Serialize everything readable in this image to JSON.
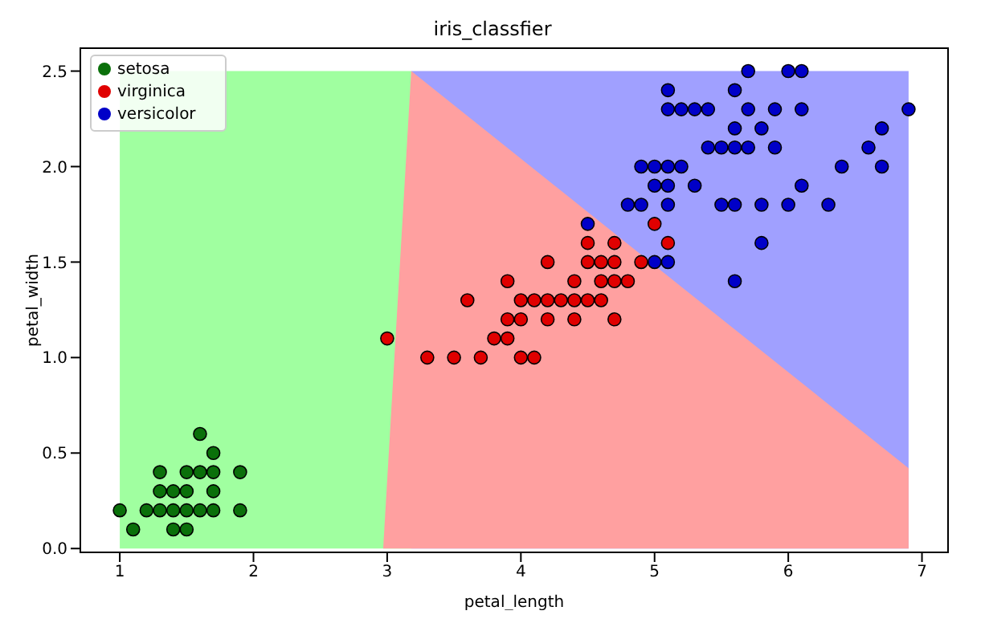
{
  "chart_data": {
    "type": "scatter",
    "title": "iris_classfier",
    "xlabel": "petal_length",
    "ylabel": "petal_width",
    "xlim": [
      0.705,
      7.195
    ],
    "xticks": [
      1,
      2,
      3,
      4,
      5,
      6,
      7
    ],
    "ylim": [
      -0.02,
      2.62
    ],
    "yticks": [
      {
        "value": 0,
        "label": "0.0"
      },
      {
        "value": 0.5,
        "label": "0.5"
      },
      {
        "value": 1,
        "label": "1.0"
      },
      {
        "value": 1.5,
        "label": "1.5"
      },
      {
        "value": 2,
        "label": "2.0"
      },
      {
        "value": 2.5,
        "label": "2.5"
      }
    ],
    "grid": false,
    "legend": "top left",
    "series": [
      {
        "type": "area",
        "color": "#a0a0ff",
        "x": [
          3.18,
          6.9
        ],
        "values": [
          2.5,
          2.5
        ]
      },
      {
        "type": "area",
        "color": "#a0ffa0",
        "x": [
          1,
          3.18
        ],
        "values": [
          2.5,
          2.5
        ]
      },
      {
        "type": "area",
        "color": "#ffa0a0",
        "x": [
          2.97,
          3.18,
          6.9
        ],
        "values": [
          0,
          2.5,
          0.42
        ]
      },
      {
        "name": "setosa",
        "color": "#0a700a",
        "x": [
          1.0,
          1.2,
          1.3,
          1.4,
          1.5,
          1.6,
          1.7,
          1.9,
          1.1,
          1.4,
          1.5,
          1.3,
          1.4,
          1.5,
          1.7,
          1.3,
          1.5,
          1.6,
          1.7,
          1.9,
          1.7,
          1.6
        ],
        "values": [
          0.2,
          0.2,
          0.2,
          0.2,
          0.2,
          0.2,
          0.2,
          0.2,
          0.1,
          0.1,
          0.1,
          0.3,
          0.3,
          0.3,
          0.3,
          0.4,
          0.4,
          0.4,
          0.4,
          0.4,
          0.5,
          0.6
        ]
      },
      {
        "name": "virginica",
        "color": "#e00000",
        "x": [
          3.3,
          3.5,
          3.7,
          4.0,
          4.1,
          3.0,
          3.8,
          3.9,
          3.9,
          4.0,
          4.2,
          4.4,
          4.7,
          3.6,
          4.0,
          4.1,
          4.2,
          4.3,
          4.4,
          4.5,
          4.6,
          3.9,
          4.4,
          4.6,
          4.7,
          4.8,
          4.2,
          4.5,
          4.6,
          4.7,
          4.9,
          4.5,
          4.7,
          5.1,
          5.0
        ],
        "values": [
          1.0,
          1.0,
          1.0,
          1.0,
          1.0,
          1.1,
          1.1,
          1.1,
          1.2,
          1.2,
          1.2,
          1.2,
          1.2,
          1.3,
          1.3,
          1.3,
          1.3,
          1.3,
          1.3,
          1.3,
          1.3,
          1.4,
          1.4,
          1.4,
          1.4,
          1.4,
          1.5,
          1.5,
          1.5,
          1.5,
          1.5,
          1.6,
          1.6,
          1.6,
          1.7
        ]
      },
      {
        "name": "versicolor",
        "color": "#0000c8",
        "x": [
          5.6,
          5.0,
          5.1,
          5.8,
          4.5,
          4.8,
          4.9,
          5.1,
          5.5,
          5.6,
          5.8,
          6.0,
          6.3,
          5.0,
          5.1,
          5.3,
          6.1,
          4.9,
          5.0,
          5.1,
          5.2,
          6.4,
          6.7,
          5.4,
          5.5,
          5.6,
          5.7,
          5.9,
          6.6,
          5.6,
          5.8,
          6.7,
          5.1,
          5.2,
          5.3,
          5.4,
          5.7,
          5.9,
          6.1,
          6.9,
          5.1,
          5.6,
          5.7,
          6.0,
          6.1
        ],
        "values": [
          1.4,
          1.5,
          1.5,
          1.6,
          1.7,
          1.8,
          1.8,
          1.8,
          1.8,
          1.8,
          1.8,
          1.8,
          1.8,
          1.9,
          1.9,
          1.9,
          1.9,
          2.0,
          2.0,
          2.0,
          2.0,
          2.0,
          2.0,
          2.1,
          2.1,
          2.1,
          2.1,
          2.1,
          2.1,
          2.2,
          2.2,
          2.2,
          2.3,
          2.3,
          2.3,
          2.3,
          2.3,
          2.3,
          2.3,
          2.3,
          2.4,
          2.4,
          2.5,
          2.5,
          2.5
        ]
      }
    ]
  }
}
